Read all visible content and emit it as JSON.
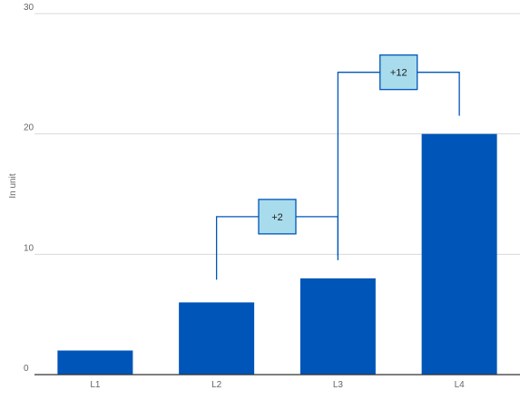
{
  "chart_data": {
    "type": "bar",
    "title": "",
    "xlabel": "",
    "ylabel": "In unit",
    "ylim": [
      0,
      30
    ],
    "yticks": [
      0,
      10,
      20,
      30
    ],
    "grid": true,
    "categories": [
      "L1",
      "L2",
      "L3",
      "L4"
    ],
    "values": [
      2,
      6,
      8,
      20
    ],
    "bar_color": "#0055b8",
    "annotations": [
      {
        "from": "L2",
        "to": "L3",
        "label": "+2"
      },
      {
        "from": "L3",
        "to": "L4",
        "label": "+12"
      }
    ],
    "annotation_fill": "#a8dcec",
    "annotation_stroke": "#0055b8"
  }
}
